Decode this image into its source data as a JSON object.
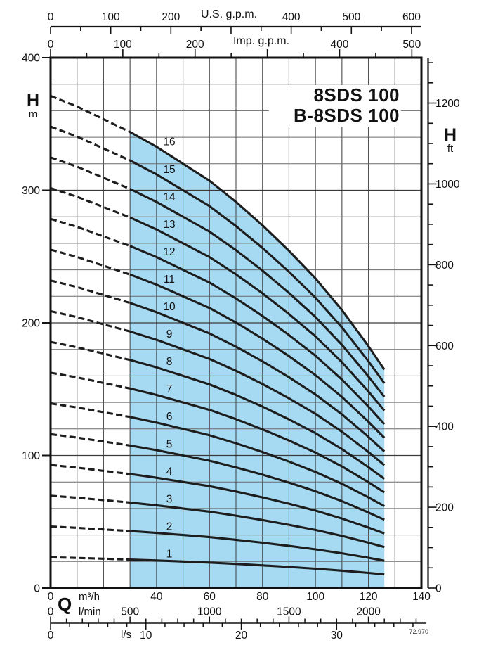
{
  "title": {
    "line1": "8SDS 100",
    "line2": "B-8SDS 100"
  },
  "labels": {
    "us_gpm_unit": "U.S. g.p.m.",
    "imp_gpm_unit": "Imp. g.p.m.",
    "h_symbol": "H",
    "m_unit": "m",
    "ft_unit": "ft",
    "q_symbol": "Q",
    "m3h_unit": "m³/h",
    "lmin_unit": "l/min",
    "ls_unit": "l/s",
    "code": "72.970"
  },
  "colors": {
    "region_fill": "#a5daf2",
    "curve": "#1d1d1d",
    "grid_v": "#4d4d4d",
    "grid_h_minor": "#6a6a6a",
    "grid_h_major": "#3a3a3a",
    "axis": "#111111",
    "text": "#111111"
  },
  "axes": {
    "us_gpm": {
      "unit": "U.S. g.p.m.",
      "labels": [
        0,
        100,
        200,
        400,
        500,
        600
      ],
      "minor_step": 50,
      "major_step": 100,
      "max": 600
    },
    "imp_gpm": {
      "unit": "Imp. g.p.m.",
      "labels": [
        0,
        100,
        200,
        400,
        500
      ],
      "minor_step": 50,
      "major_step": 100,
      "max": 500
    },
    "h_m": {
      "unit": "m",
      "labels": [
        400,
        300,
        200,
        100,
        0
      ],
      "grid_step": 20,
      "max": 400
    },
    "h_ft": {
      "unit": "ft",
      "labels": [
        1200,
        1000,
        800,
        600,
        400,
        200,
        0
      ],
      "minor_step": 50,
      "major_step": 200,
      "max": 1300
    },
    "q_m3h": {
      "unit": "m³/h",
      "labels": [
        0,
        40,
        60,
        80,
        100,
        120,
        140
      ],
      "grid_step": 10,
      "max": 140
    },
    "q_lmin": {
      "unit": "l/min",
      "labels": [
        0,
        500,
        1000,
        1500,
        2000
      ],
      "minor_step": 100,
      "major_step": 500,
      "max": 2300
    },
    "q_ls": {
      "unit": "l/s",
      "labels": [
        0,
        10,
        20,
        30
      ],
      "minor_step": 2,
      "major_step": 10,
      "max": 38
    }
  },
  "chart_data": {
    "type": "line",
    "title": "8SDS 100 / B-8SDS 100",
    "xlabel": "Q (m³/h, l/min, l/s, U.S. g.p.m., Imp. g.p.m.)",
    "ylabel": "H (m, ft)",
    "xlim": [
      0,
      140
    ],
    "ylim": [
      0,
      400
    ],
    "grid": true,
    "q_dashed": [
      0,
      10,
      20,
      30
    ],
    "q_solid": [
      30,
      40,
      50,
      60,
      70,
      80,
      90,
      100,
      110,
      120,
      126
    ],
    "operating_region": {
      "q_min": 30,
      "q_max": 126,
      "note": "shaded recommended duty range"
    },
    "curves": [
      {
        "label": "1",
        "stages": 1,
        "head_dashed": [
          23.2,
          22.7,
          22.1,
          21.5
        ],
        "head_solid": [
          21.5,
          20.8,
          20,
          19.2,
          18.2,
          17.1,
          15.9,
          14.6,
          13.1,
          11.4,
          10.3
        ]
      },
      {
        "label": "2",
        "stages": 2,
        "head_dashed": [
          46.4,
          45.4,
          44.2,
          43
        ],
        "head_solid": [
          43,
          41.6,
          40,
          38.4,
          36.4,
          34.2,
          31.8,
          29.2,
          26.2,
          22.8,
          20.6
        ]
      },
      {
        "label": "3",
        "stages": 3,
        "head_dashed": [
          69.6,
          68.1,
          66.3,
          64.5
        ],
        "head_solid": [
          64.5,
          62.4,
          60,
          57.6,
          54.6,
          51.3,
          47.7,
          43.8,
          39.3,
          34.2,
          30.9
        ]
      },
      {
        "label": "4",
        "stages": 4,
        "head_dashed": [
          92.8,
          90.8,
          88.4,
          86
        ],
        "head_solid": [
          86,
          83.2,
          80,
          76.8,
          72.8,
          68.4,
          63.6,
          58.4,
          52.4,
          45.6,
          41.2
        ]
      },
      {
        "label": "5",
        "stages": 5,
        "head_dashed": [
          116,
          113.5,
          110.5,
          107.5
        ],
        "head_solid": [
          107.5,
          104,
          100,
          96,
          91,
          85.5,
          79.5,
          73,
          65.5,
          57,
          51.5
        ]
      },
      {
        "label": "6",
        "stages": 6,
        "head_dashed": [
          139.2,
          136.2,
          132.6,
          129
        ],
        "head_solid": [
          129,
          124.8,
          120,
          115.2,
          109.2,
          102.6,
          95.4,
          87.6,
          78.6,
          68.4,
          61.8
        ]
      },
      {
        "label": "7",
        "stages": 7,
        "head_dashed": [
          162.4,
          158.9,
          154.7,
          150.5
        ],
        "head_solid": [
          150.5,
          145.6,
          140,
          134.4,
          127.4,
          119.7,
          111.3,
          102.2,
          91.7,
          79.8,
          72.1
        ]
      },
      {
        "label": "8",
        "stages": 8,
        "head_dashed": [
          185.6,
          181.6,
          176.8,
          172
        ],
        "head_solid": [
          172,
          166.4,
          160,
          153.6,
          145.6,
          136.8,
          127.2,
          116.8,
          104.8,
          91.2,
          82.4
        ]
      },
      {
        "label": "9",
        "stages": 9,
        "head_dashed": [
          208.8,
          204.3,
          198.9,
          193.5
        ],
        "head_solid": [
          193.5,
          187.2,
          180,
          172.8,
          163.8,
          153.9,
          143.1,
          131.4,
          117.9,
          102.6,
          92.7
        ]
      },
      {
        "label": "10",
        "stages": 10,
        "head_dashed": [
          232,
          227,
          221,
          215
        ],
        "head_solid": [
          215,
          208,
          200,
          192,
          182,
          171,
          159,
          146,
          131,
          114,
          103
        ]
      },
      {
        "label": "11",
        "stages": 11,
        "head_dashed": [
          255.2,
          249.7,
          243.1,
          236.5
        ],
        "head_solid": [
          236.5,
          228.8,
          220,
          211.2,
          200.2,
          188.1,
          174.9,
          160.6,
          144.1,
          125.4,
          113.3
        ]
      },
      {
        "label": "12",
        "stages": 12,
        "head_dashed": [
          278.4,
          272.4,
          265.2,
          258
        ],
        "head_solid": [
          258,
          249.6,
          240,
          230.4,
          218.4,
          205.2,
          190.8,
          175.2,
          157.2,
          136.8,
          123.6
        ]
      },
      {
        "label": "13",
        "stages": 13,
        "head_dashed": [
          301.6,
          295.1,
          287.3,
          279.5
        ],
        "head_solid": [
          279.5,
          270.4,
          260,
          249.6,
          236.6,
          222.3,
          206.7,
          189.8,
          170.3,
          148.2,
          133.9
        ]
      },
      {
        "label": "14",
        "stages": 14,
        "head_dashed": [
          324.8,
          317.8,
          309.4,
          301
        ],
        "head_solid": [
          301,
          291.2,
          280,
          268.8,
          254.8,
          239.4,
          222.6,
          204.4,
          183.4,
          159.6,
          144.2
        ]
      },
      {
        "label": "15",
        "stages": 15,
        "head_dashed": [
          348,
          340.5,
          331.5,
          322.5
        ],
        "head_solid": [
          322.5,
          312,
          300,
          288,
          273,
          256.5,
          238.5,
          219,
          196.5,
          171,
          154.5
        ]
      },
      {
        "label": "16",
        "stages": 16,
        "head_dashed": [
          371.2,
          363.2,
          353.6,
          344
        ],
        "head_solid": [
          344,
          332.8,
          320,
          307.2,
          291.2,
          273.6,
          254.4,
          233.6,
          209.6,
          182.4,
          164.8
        ]
      }
    ]
  }
}
